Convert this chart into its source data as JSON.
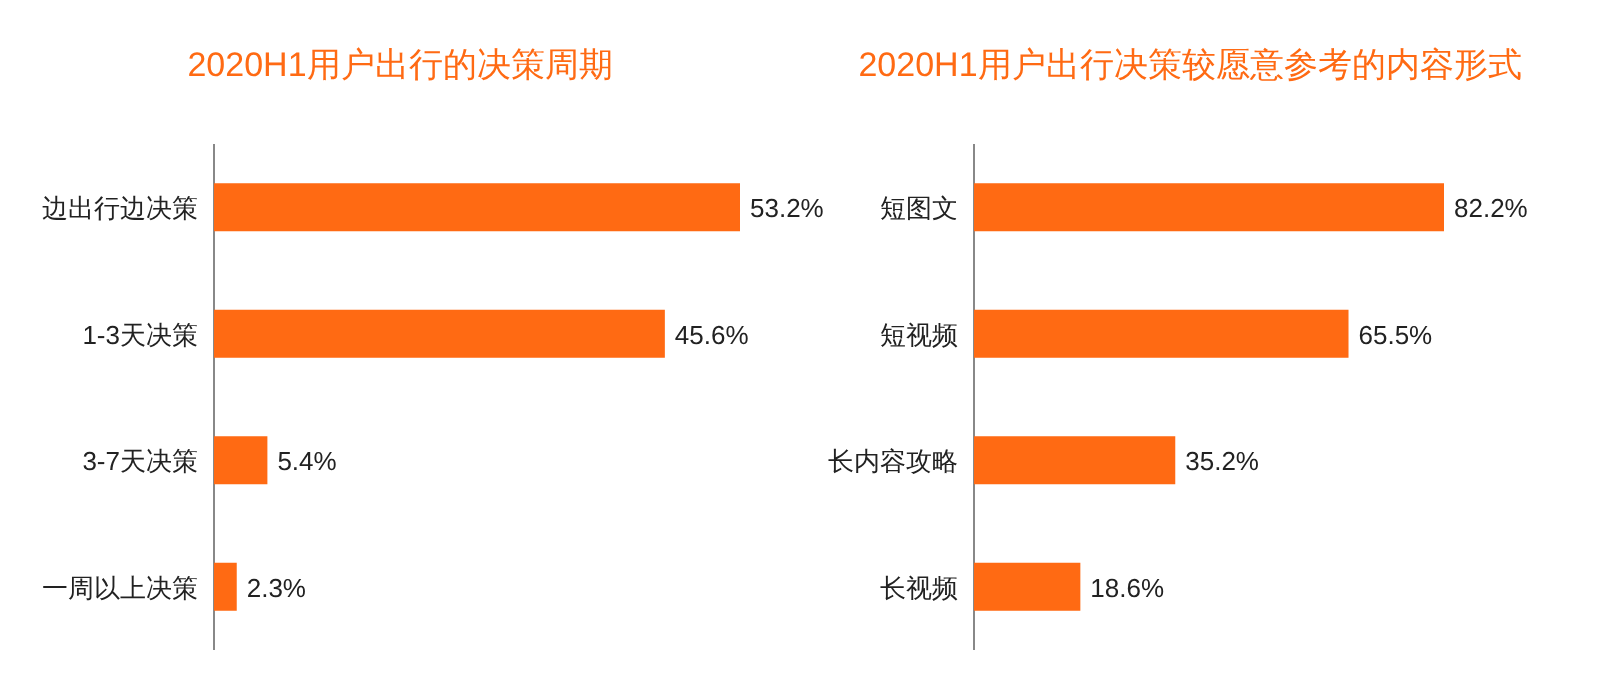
{
  "chart_data": [
    {
      "type": "bar",
      "orientation": "horizontal",
      "title": "2020H1用户出行的决策周期",
      "categories": [
        "边出行边决策",
        "1-3天决策",
        "3-7天决策",
        "一周以上决策"
      ],
      "values": [
        53.2,
        45.6,
        5.4,
        2.3
      ],
      "value_labels": [
        "53.2%",
        "45.6%",
        "5.4%",
        "2.3%"
      ],
      "color": "#ff6a13"
    },
    {
      "type": "bar",
      "orientation": "horizontal",
      "title": "2020H1用户出行决策较愿意参考的内容形式",
      "categories": [
        "短图文",
        "短视频",
        "长内容攻略",
        "长视频"
      ],
      "values": [
        82.2,
        65.5,
        35.2,
        18.6
      ],
      "value_labels": [
        "82.2%",
        "65.5%",
        "35.2%",
        "18.6%"
      ],
      "color": "#ff6a13"
    }
  ]
}
